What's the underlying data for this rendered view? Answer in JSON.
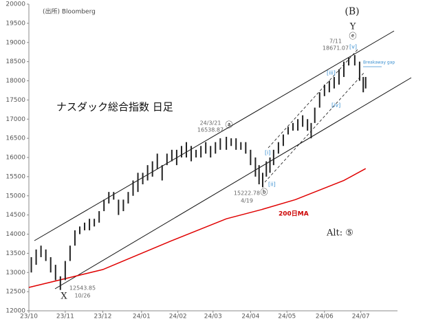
{
  "source": "(出所) Bloomberg",
  "chart_data": {
    "type": "ohlc",
    "title": "ナスダック総合指数 日足",
    "color": "#222222",
    "x": [
      2,
      6,
      10,
      14,
      18,
      22,
      26,
      30,
      34,
      38,
      42,
      46,
      50,
      54,
      58,
      62,
      66,
      70,
      74,
      78,
      82,
      86,
      90,
      94,
      98,
      102,
      106,
      110,
      114,
      118,
      122,
      126,
      130,
      134,
      138,
      142,
      146,
      150,
      154,
      158,
      163,
      167,
      171,
      175,
      179,
      183,
      187,
      190,
      193,
      196,
      199,
      202,
      206,
      210,
      214,
      218,
      222,
      226,
      230,
      233,
      236,
      240,
      244,
      248,
      252,
      256,
      260,
      264,
      269,
      273,
      276,
      278
    ],
    "low": [
      13000,
      13200,
      13400,
      13300,
      13000,
      12800,
      12543.85,
      12800,
      13300,
      13700,
      14000,
      14100,
      14100,
      14200,
      14300,
      14600,
      14800,
      14900,
      14500,
      14600,
      14800,
      15000,
      15100,
      15300,
      15400,
      15500,
      15700,
      15400,
      15800,
      15900,
      15800,
      16000,
      16000,
      15900,
      16000,
      16000,
      16100,
      16000,
      16100,
      16200,
      16200,
      16300,
      16200,
      16200,
      16100,
      15800,
      15500,
      15300,
      15222.78,
      15500,
      15600,
      15800,
      16100,
      16300,
      16600,
      16700,
      16700,
      16800,
      16700,
      16500,
      16900,
      17300,
      17600,
      17700,
      17800,
      17900,
      18100,
      18400,
      18400,
      18000,
      17700,
      17800
    ],
    "high": [
      13400,
      13600,
      13700,
      13600,
      13400,
      13200,
      12900,
      13300,
      13700,
      14100,
      14200,
      14300,
      14400,
      14400,
      14600,
      14900,
      15100,
      15100,
      14900,
      14900,
      15100,
      15400,
      15600,
      15600,
      15800,
      15900,
      16100,
      15800,
      16100,
      16200,
      16200,
      16300,
      16400,
      16300,
      16200,
      16300,
      16400,
      16300,
      16400,
      16500,
      16538.87,
      16500,
      16500,
      16400,
      16400,
      16200,
      16000,
      15800,
      15600,
      15900,
      16000,
      16200,
      16400,
      16600,
      16800,
      16900,
      17000,
      17100,
      17000,
      16900,
      17300,
      17700,
      17900,
      18000,
      18100,
      18300,
      18500,
      18600,
      18671.07,
      18500,
      18100,
      18100
    ],
    "ma": {
      "name": "200日MA",
      "color": "#e00000",
      "x": [
        0,
        61,
        118,
        163,
        192,
        220,
        260,
        278
      ],
      "values": [
        12610,
        13076,
        13830,
        14400,
        14640,
        14900,
        15400,
        15710
      ]
    },
    "xlim": [
      0,
      302
    ],
    "xticks": [
      {
        "value": 0,
        "label": "23/10"
      },
      {
        "value": 30,
        "label": "23/11"
      },
      {
        "value": 61,
        "label": "23/12"
      },
      {
        "value": 93,
        "label": "24/01"
      },
      {
        "value": 123,
        "label": "24/02"
      },
      {
        "value": 152,
        "label": "24/03"
      },
      {
        "value": 183,
        "label": "24/04"
      },
      {
        "value": 213,
        "label": "24/05"
      },
      {
        "value": 244,
        "label": "24/06"
      },
      {
        "value": 274,
        "label": "24/07"
      }
    ],
    "ylim": [
      12000,
      20000
    ],
    "yticks": [
      12000,
      12500,
      13000,
      13500,
      14000,
      14500,
      15000,
      15500,
      16000,
      16500,
      17000,
      17500,
      18000,
      18500,
      19000,
      19500,
      20000
    ],
    "annotations": {
      "high": {
        "date": "7/11"
      },
      "mar": {
        "date": "24/3/21"
      },
      "apr": {
        "date": "4/19"
      },
      "oct": {
        "date": "10/26"
      }
    },
    "labels": {
      "B": "(B)",
      "Y": "Y",
      "e": "ⓔ",
      "a": "ⓐ",
      "b": "ⓑ",
      "X": "X",
      "alt": "Alt: ⑤",
      "w1": "[i]",
      "w2": "[ii]",
      "w3": "[iii]",
      "w4": "[iv]",
      "w5": "[v]",
      "gap": "Breakaway gap"
    }
  }
}
